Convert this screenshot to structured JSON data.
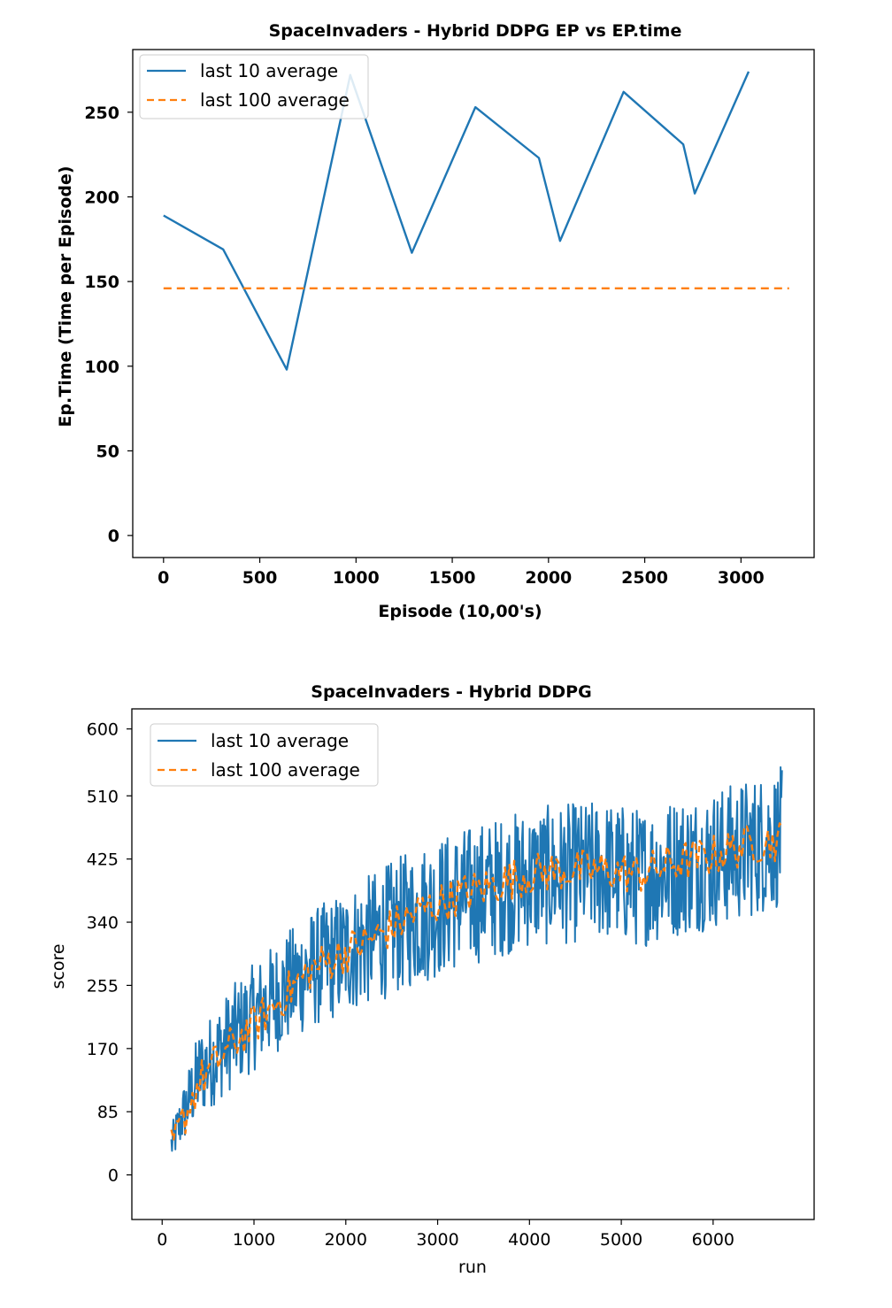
{
  "chart_data": [
    {
      "type": "line",
      "title": "SpaceInvaders - Hybrid DDPG  EP vs EP.time",
      "xlabel": "Episode (10,00's)",
      "ylabel": "Ep.Time (Time per Episode)",
      "xlim": [
        -160,
        3380
      ],
      "ylim": [
        -13,
        287
      ],
      "xticks": [
        "0",
        "500",
        "1000",
        "1500",
        "2000",
        "2500",
        "3000"
      ],
      "xtick_values": [
        0,
        500,
        1000,
        1500,
        2000,
        2500,
        3000
      ],
      "yticks": [
        "0",
        "50",
        "100",
        "150",
        "200",
        "250"
      ],
      "ytick_values": [
        0,
        50,
        100,
        150,
        200,
        250
      ],
      "grid": false,
      "legend_position": "top-left",
      "series": [
        {
          "name": "last 10 average",
          "color": "#1f77b4",
          "style": "solid",
          "x": [
            0,
            310,
            640,
            970,
            1290,
            1620,
            1950,
            2060,
            2390,
            2700,
            2760,
            3040
          ],
          "y": [
            189,
            169,
            98,
            272,
            167,
            253,
            223,
            174,
            262,
            231,
            202,
            274
          ]
        },
        {
          "name": "last 100 average",
          "color": "#ff7f0e",
          "style": "dashed",
          "x": [
            0,
            3250
          ],
          "y": [
            146,
            146
          ]
        }
      ]
    },
    {
      "type": "line",
      "title": "SpaceInvaders - Hybrid DDPG",
      "xlabel": "run",
      "ylabel": "score",
      "xlim": [
        -330,
        7100
      ],
      "ylim": [
        -60,
        627
      ],
      "xticks": [
        "0",
        "1000",
        "2000",
        "3000",
        "4000",
        "5000",
        "6000"
      ],
      "xtick_values": [
        0,
        1000,
        2000,
        3000,
        4000,
        5000,
        6000
      ],
      "yticks": [
        "0",
        "85",
        "170",
        "255",
        "340",
        "425",
        "510",
        "600"
      ],
      "ytick_values": [
        0,
        85,
        170,
        255,
        340,
        425,
        510,
        600
      ],
      "grid": false,
      "legend_position": "top-left",
      "series": [
        {
          "name": "last 10 average",
          "color": "#1f77b4",
          "style": "solid",
          "x": [
            100,
            400,
            800,
            1200,
            1600,
            2000,
            2400,
            2800,
            3200,
            3600,
            4000,
            4400,
            4800,
            5200,
            5600,
            6000,
            6400,
            6750
          ],
          "y": [
            40,
            135,
            190,
            235,
            275,
            300,
            325,
            350,
            370,
            385,
            400,
            405,
            410,
            400,
            415,
            425,
            440,
            455
          ],
          "spread": [
            25,
            60,
            70,
            75,
            80,
            85,
            90,
            95,
            95,
            95,
            95,
            95,
            95,
            95,
            95,
            95,
            95,
            95
          ]
        },
        {
          "name": "last 100 average",
          "color": "#ff7f0e",
          "style": "dashed",
          "x": [
            100,
            400,
            800,
            1200,
            1600,
            2000,
            2400,
            2800,
            3200,
            3600,
            4000,
            4400,
            4800,
            5200,
            5600,
            6000,
            6400,
            6750
          ],
          "y": [
            35,
            125,
            180,
            225,
            275,
            300,
            325,
            355,
            375,
            390,
            405,
            410,
            410,
            405,
            420,
            430,
            445,
            450
          ]
        }
      ]
    }
  ]
}
